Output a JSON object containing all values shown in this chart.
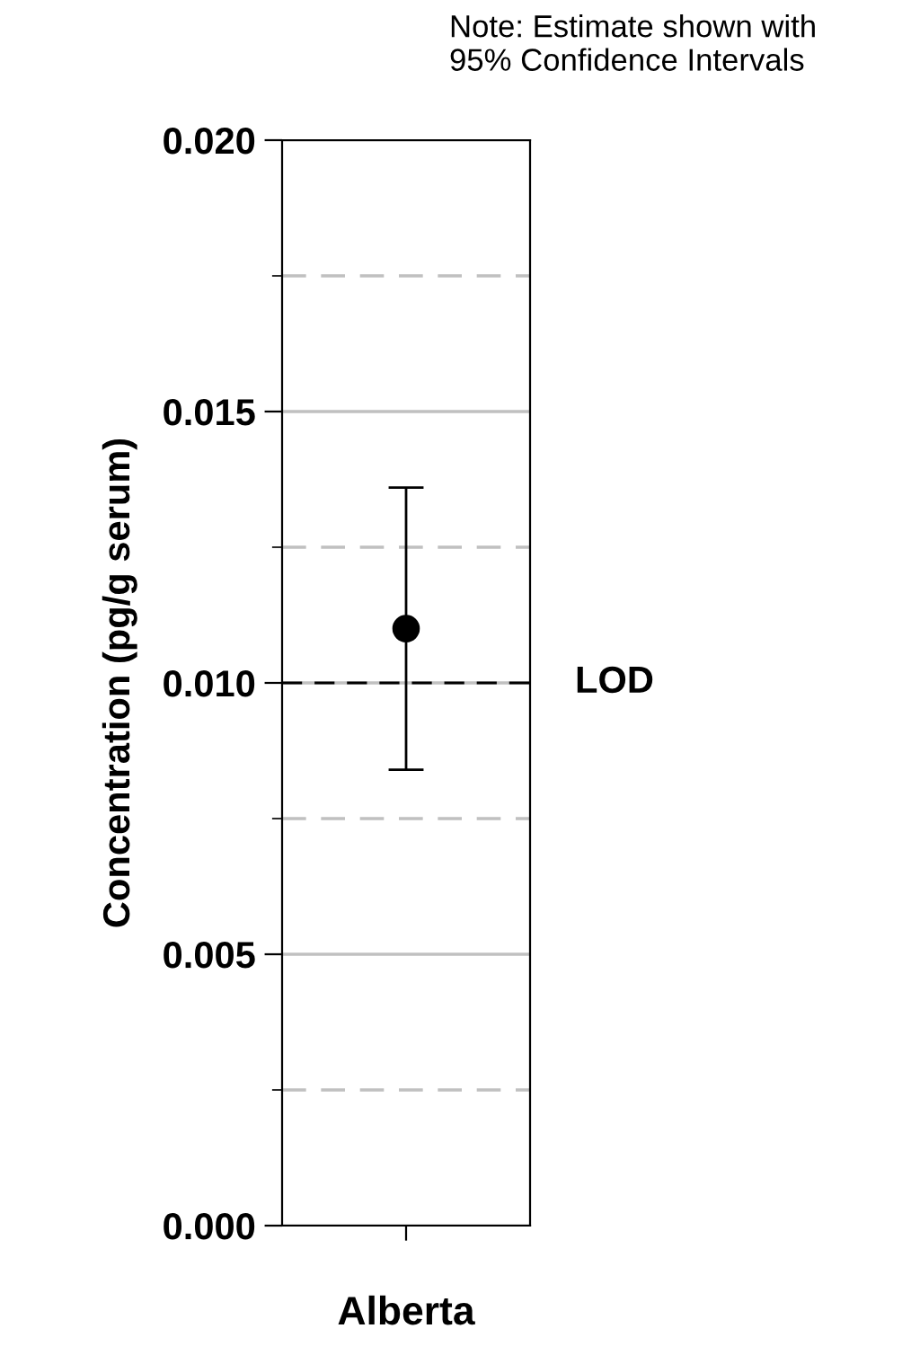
{
  "chart_data": {
    "type": "scatter",
    "ylabel": "Concentration (pg/g serum)",
    "categories": [
      "Alberta"
    ],
    "series": [
      {
        "color": "#000000",
        "values": [
          0.011
        ],
        "errors": [
          [
            0.0084,
            0.0136
          ]
        ]
      }
    ],
    "marker": "circle",
    "ylim": [
      0,
      0.02
    ],
    "yticks": [
      {
        "value": 0,
        "label": "0.000"
      },
      {
        "value": 0.0025,
        "label": null
      },
      {
        "value": 0.005,
        "label": "0.005"
      },
      {
        "value": 0.0075,
        "label": null
      },
      {
        "value": 0.01,
        "label": "0.010"
      },
      {
        "value": 0.0125,
        "label": null
      },
      {
        "value": 0.015,
        "label": "0.015"
      },
      {
        "value": 0.0175,
        "label": null
      },
      {
        "value": 0.02,
        "label": "0.020"
      }
    ],
    "grid": "y",
    "ref_lines": [
      {
        "axis": "y",
        "value": 0.01,
        "label": "LOD",
        "color": "#000000",
        "line_style": "dashed"
      }
    ],
    "annotations": [
      "Note: Estimate shown with\n95% Confidence Intervals"
    ]
  }
}
